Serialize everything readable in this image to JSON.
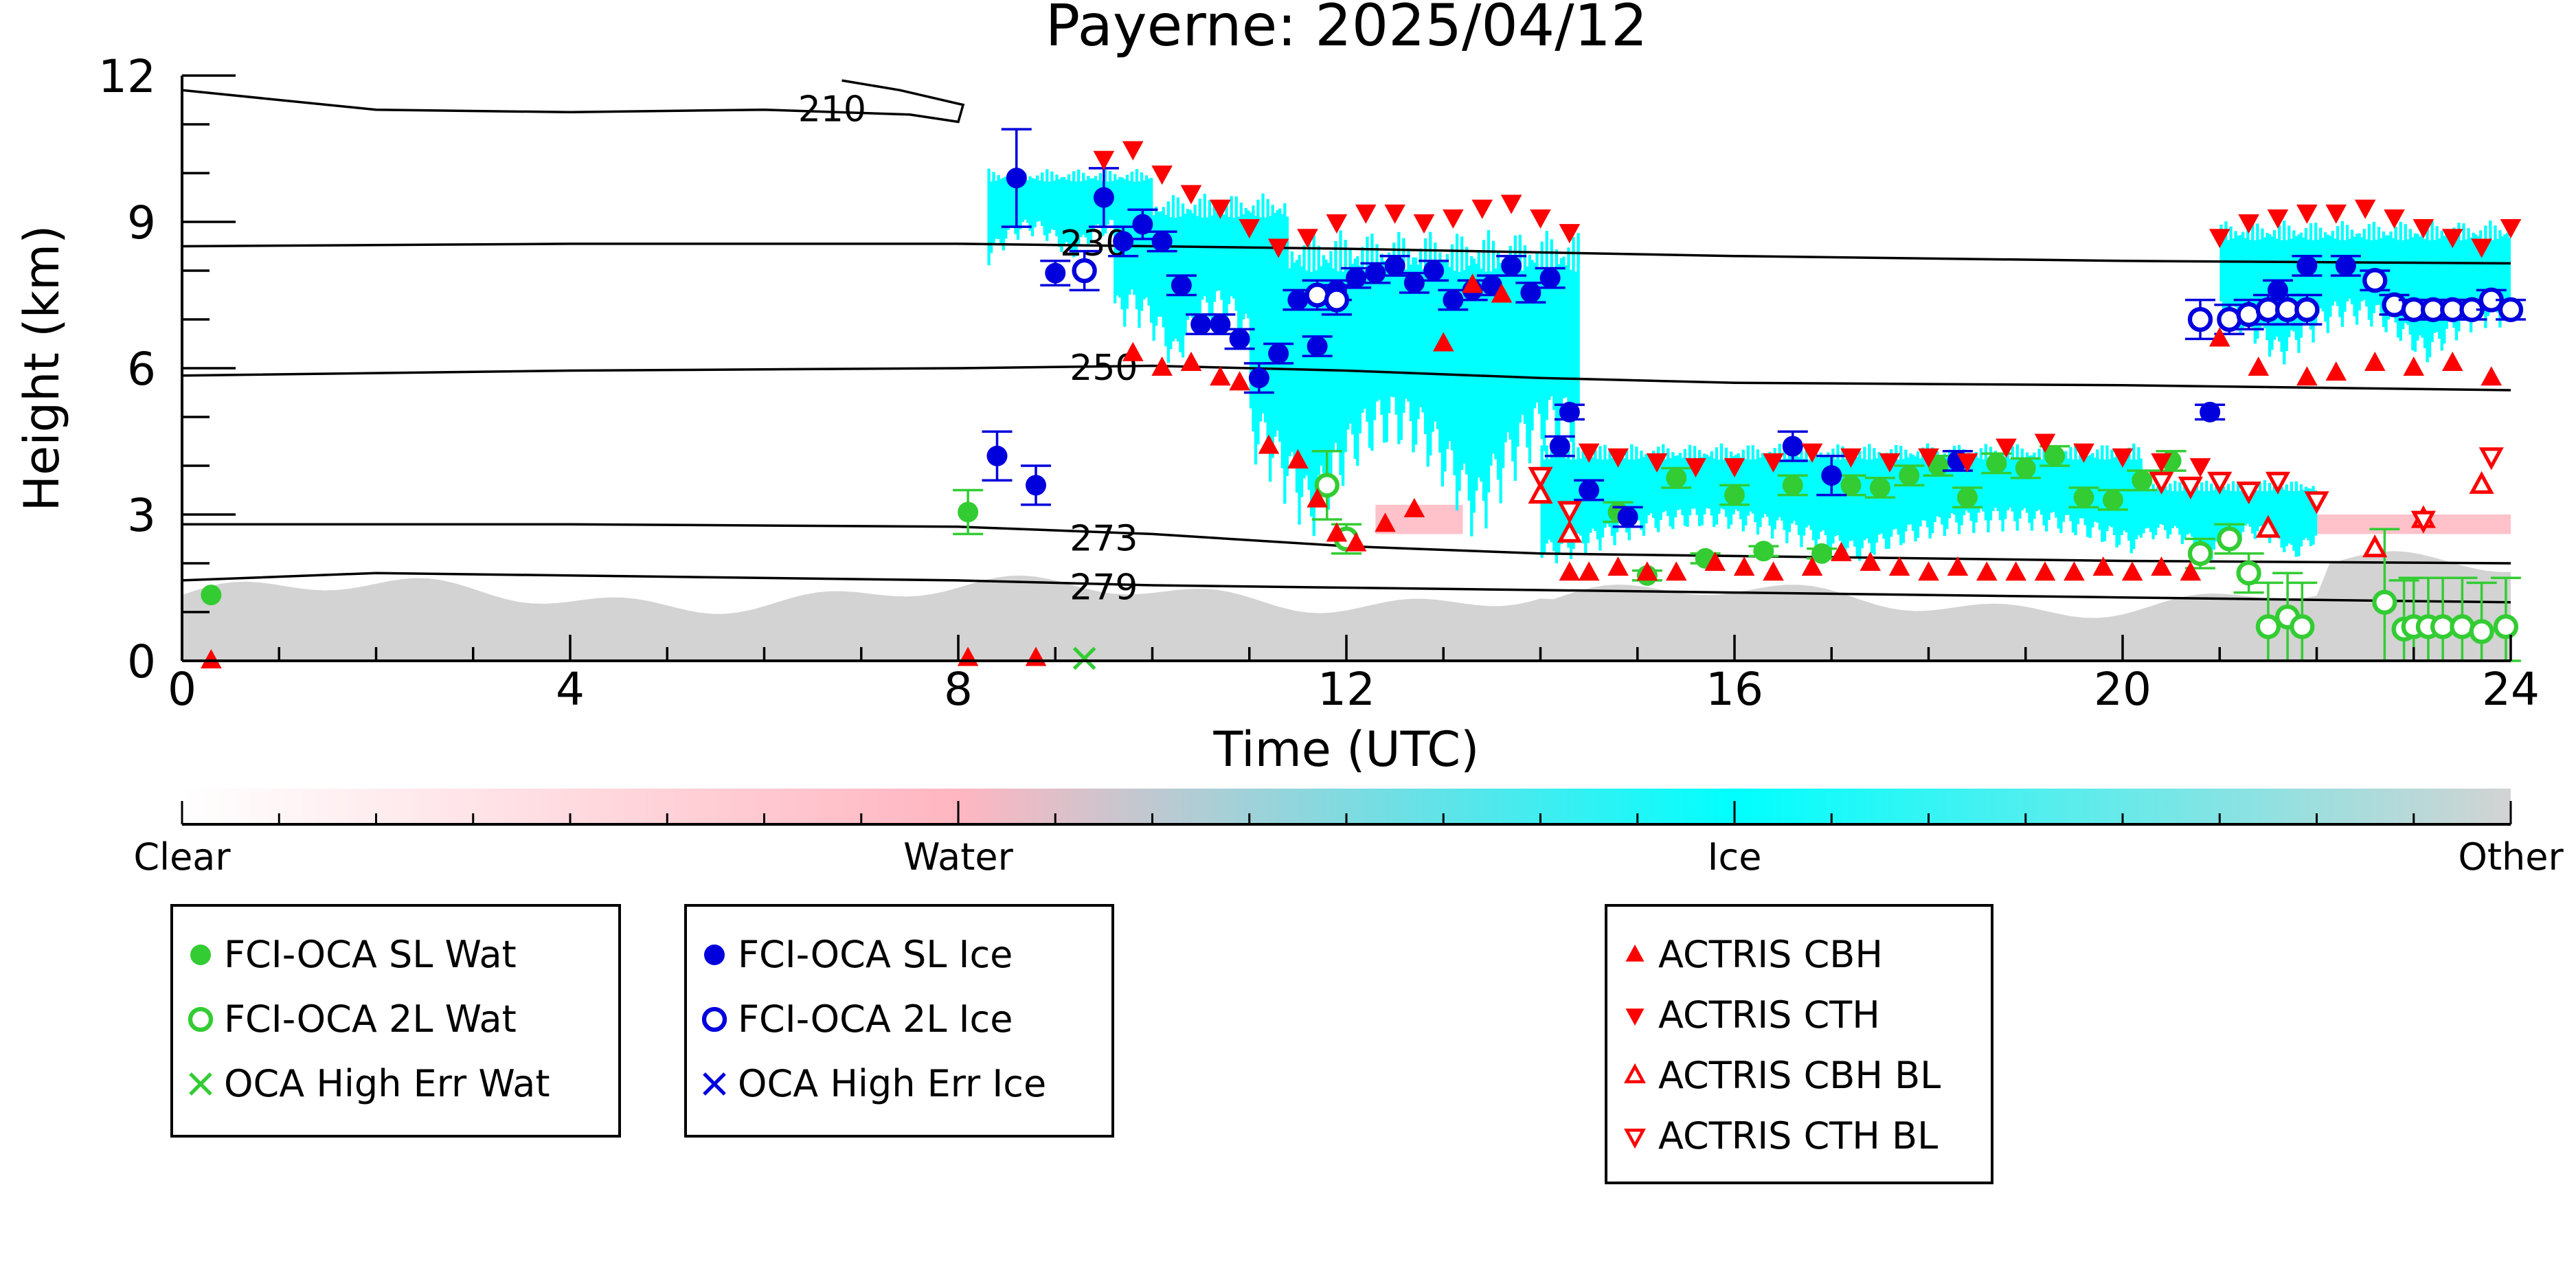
{
  "chart_data": {
    "type": "scatter",
    "title": "Payerne: 2025/04/12",
    "xlabel": "Time (UTC)",
    "ylabel": "Height (km)",
    "xlim": [
      0,
      24
    ],
    "ylim": [
      0,
      12
    ],
    "xticks": [
      "0",
      "4",
      "8",
      "12",
      "16",
      "20",
      "24"
    ],
    "yticks": [
      "0",
      "3",
      "6",
      "9",
      "12"
    ],
    "background": {
      "description": "ground-based cloud classification image",
      "classes": [
        "Clear",
        "Water",
        "Ice",
        "Other"
      ],
      "class_colors": {
        "Clear": "#ffffff",
        "Water": "#ffb6c1",
        "Ice": "#00ffff",
        "Other": "#d3d3d3"
      },
      "ice_regions": [
        {
          "x0": 8.3,
          "x1": 10.0,
          "y0": 8.0,
          "y1": 10.2
        },
        {
          "x0": 9.6,
          "x1": 11.4,
          "y0": 5.6,
          "y1": 9.8
        },
        {
          "x0": 11.0,
          "x1": 14.4,
          "y0": 2.0,
          "y1": 9.2
        },
        {
          "x0": 14.0,
          "x1": 20.2,
          "y0": 1.8,
          "y1": 4.6
        },
        {
          "x0": 20.2,
          "x1": 22.0,
          "y0": 1.9,
          "y1": 3.8
        },
        {
          "x0": 21.0,
          "x1": 24.0,
          "y0": 5.8,
          "y1": 9.2
        }
      ],
      "water_regions": [
        {
          "x0": 12.3,
          "x1": 13.2,
          "y0": 2.6,
          "y1": 3.2
        },
        {
          "x0": 22.0,
          "x1": 24.0,
          "y0": 2.6,
          "y1": 3.0
        }
      ]
    },
    "colorbar": {
      "labels": [
        "Clear",
        "Water",
        "Ice",
        "Other"
      ],
      "stops": [
        {
          "pos": 0.0,
          "color": "#ffffff"
        },
        {
          "pos": 0.333,
          "color": "#ffb6c1"
        },
        {
          "pos": 0.667,
          "color": "#00ffff"
        },
        {
          "pos": 1.0,
          "color": "#d3d3d3"
        }
      ]
    },
    "contours": [
      {
        "label": "210",
        "x": [
          0,
          2,
          4,
          6,
          7.5,
          8.0,
          8.05,
          7.4,
          6.8
        ],
        "y": [
          11.7,
          11.3,
          11.25,
          11.3,
          11.2,
          11.05,
          11.4,
          11.7,
          11.9
        ]
      },
      {
        "label": "230",
        "x": [
          0,
          4,
          8,
          12,
          16,
          20,
          24
        ],
        "y": [
          8.5,
          8.55,
          8.55,
          8.45,
          8.3,
          8.2,
          8.15
        ]
      },
      {
        "label": "250",
        "x": [
          0,
          4,
          8,
          10,
          12,
          14,
          16,
          20,
          24
        ],
        "y": [
          5.85,
          5.95,
          6.0,
          6.05,
          5.95,
          5.8,
          5.7,
          5.65,
          5.55
        ]
      },
      {
        "label": "273",
        "x": [
          0,
          4,
          8,
          10,
          12,
          14,
          16,
          20,
          24
        ],
        "y": [
          2.8,
          2.8,
          2.75,
          2.6,
          2.35,
          2.2,
          2.15,
          2.05,
          2.0
        ]
      },
      {
        "label": "279",
        "x": [
          0,
          2,
          4,
          8,
          10,
          12,
          14,
          16,
          20,
          24
        ],
        "y": [
          1.65,
          1.8,
          1.75,
          1.65,
          1.55,
          1.5,
          1.45,
          1.4,
          1.3,
          1.2
        ]
      }
    ],
    "contour_labels": [
      {
        "text": "210",
        "x": 6.7,
        "y": 11.3
      },
      {
        "text": "230",
        "x": 9.4,
        "y": 8.55
      },
      {
        "text": "250",
        "x": 9.5,
        "y": 6.0
      },
      {
        "text": "273",
        "x": 9.5,
        "y": 2.5
      },
      {
        "text": "279",
        "x": 9.5,
        "y": 1.5
      }
    ],
    "series": [
      {
        "name": "FCI-OCA SL Wat",
        "marker": "filled-circle",
        "color": "#33cc33",
        "x": [
          0.3,
          8.1,
          14.8,
          15.1,
          15.4,
          15.7,
          16.0,
          16.3,
          16.6,
          16.9,
          17.2,
          17.5,
          17.8,
          18.1,
          18.4,
          18.7,
          19.0,
          19.3,
          19.6,
          19.9,
          20.2,
          20.5
        ],
        "y": [
          1.35,
          3.05,
          3.05,
          1.75,
          3.75,
          2.1,
          3.4,
          2.25,
          3.6,
          2.2,
          3.6,
          3.55,
          3.8,
          4.0,
          3.35,
          4.05,
          3.95,
          4.2,
          3.35,
          3.3,
          3.7,
          4.1
        ],
        "yerr": [
          0,
          0.45,
          0.2,
          0.1,
          0.2,
          0.1,
          0.2,
          0.1,
          0.2,
          0.1,
          0.2,
          0.2,
          0.2,
          0.2,
          0.2,
          0.2,
          0.2,
          0.2,
          0.2,
          0.2,
          0.2,
          0.2
        ]
      },
      {
        "name": "FCI-OCA 2L Wat",
        "marker": "open-circle",
        "color": "#33cc33",
        "x": [
          11.8,
          12.0,
          20.8,
          21.1,
          21.3,
          21.5,
          21.7,
          21.85,
          22.7,
          22.9,
          23.0,
          23.15,
          23.3,
          23.5,
          23.7,
          23.95
        ],
        "y": [
          3.6,
          2.5,
          2.2,
          2.5,
          1.8,
          0.7,
          0.9,
          0.7,
          1.2,
          0.65,
          0.7,
          0.7,
          0.7,
          0.7,
          0.6,
          0.7
        ],
        "yerr": [
          0.7,
          0.3,
          0.3,
          0.3,
          0.4,
          0.9,
          0.9,
          0.9,
          1.5,
          1.0,
          1.0,
          1.0,
          1.0,
          1.0,
          1.0,
          1.0
        ]
      },
      {
        "name": "OCA High Err Wat",
        "marker": "cross",
        "color": "#33cc33",
        "x": [
          9.3
        ],
        "y": [
          0.05
        ],
        "yerr": [
          0
        ]
      },
      {
        "name": "FCI-OCA SL Ice",
        "marker": "filled-circle",
        "color": "#0000dd",
        "x": [
          8.6,
          9.0,
          9.5,
          9.7,
          9.9,
          10.1,
          10.3,
          10.5,
          10.7,
          10.9,
          11.1,
          11.3,
          11.5,
          11.7,
          11.9,
          12.1,
          12.3,
          12.5,
          12.7,
          12.9,
          13.1,
          13.3,
          13.5,
          13.7,
          13.9,
          14.1,
          14.3,
          8.4,
          8.8,
          14.2,
          14.5,
          14.9,
          16.6,
          17.0,
          18.3,
          20.9,
          21.6,
          21.9,
          22.3
        ],
        "y": [
          9.9,
          7.95,
          9.5,
          8.6,
          8.95,
          8.6,
          7.7,
          6.9,
          6.9,
          6.6,
          5.8,
          6.3,
          7.4,
          6.45,
          7.6,
          7.85,
          7.95,
          8.1,
          7.75,
          8.0,
          7.4,
          7.6,
          7.7,
          8.1,
          7.55,
          7.85,
          5.1,
          4.2,
          3.6,
          4.4,
          3.5,
          2.95,
          4.4,
          3.8,
          4.1,
          5.1,
          7.6,
          8.1,
          8.1
        ],
        "yerr": [
          1.0,
          0.25,
          0.6,
          0.3,
          0.3,
          0.2,
          0.2,
          0.2,
          0.2,
          0.2,
          0.3,
          0.2,
          0.2,
          0.2,
          0.2,
          0.2,
          0.2,
          0.2,
          0.2,
          0.2,
          0.2,
          0.2,
          0.2,
          0.2,
          0.2,
          0.2,
          0.15,
          0.5,
          0.4,
          0.2,
          0.2,
          0.2,
          0.3,
          0.4,
          0.2,
          0.15,
          0.2,
          0.2,
          0.2
        ]
      },
      {
        "name": "FCI-OCA 2L Ice",
        "marker": "open-circle",
        "color": "#0000dd",
        "x": [
          9.3,
          11.7,
          11.9,
          20.8,
          21.1,
          21.3,
          21.5,
          21.7,
          21.9,
          22.6,
          22.8,
          23.0,
          23.2,
          23.4,
          23.6,
          23.8,
          24.0
        ],
        "y": [
          8.0,
          7.5,
          7.4,
          7.0,
          7.0,
          7.1,
          7.2,
          7.2,
          7.2,
          7.8,
          7.3,
          7.2,
          7.2,
          7.2,
          7.2,
          7.4,
          7.2
        ],
        "yerr": [
          0.4,
          0.3,
          0.3,
          0.4,
          0.3,
          0.3,
          0.3,
          0.3,
          0.3,
          0.2,
          0.2,
          0.2,
          0.2,
          0.2,
          0.2,
          0.2,
          0.2
        ]
      },
      {
        "name": "OCA High Err Ice",
        "marker": "cross",
        "color": "#0000dd",
        "x": [],
        "y": [],
        "yerr": []
      },
      {
        "name": "ACTRIS CBH",
        "marker": "filled-triangle-up",
        "color": "#ff0000",
        "x": [
          0.3,
          8.1,
          8.8,
          9.8,
          10.1,
          10.4,
          10.7,
          10.9,
          11.2,
          11.5,
          11.7,
          11.9,
          12.1,
          12.4,
          12.7,
          13.0,
          13.3,
          13.6,
          14.3,
          14.5,
          14.8,
          15.1,
          15.4,
          15.8,
          16.1,
          16.4,
          16.8,
          17.1,
          17.4,
          17.7,
          18.0,
          18.3,
          18.6,
          18.9,
          19.2,
          19.5,
          19.8,
          20.1,
          20.4,
          20.7,
          21.0,
          21.4,
          21.9,
          22.2,
          22.6,
          23.0,
          23.4,
          23.8
        ],
        "y": [
          0.0,
          0.05,
          0.05,
          6.3,
          6.0,
          6.1,
          5.8,
          5.7,
          4.4,
          4.1,
          3.3,
          2.6,
          2.4,
          2.8,
          3.1,
          6.5,
          7.7,
          7.5,
          1.8,
          1.8,
          1.9,
          1.8,
          1.8,
          2.0,
          1.9,
          1.8,
          1.9,
          2.2,
          2.0,
          1.9,
          1.8,
          1.9,
          1.8,
          1.8,
          1.8,
          1.8,
          1.9,
          1.8,
          1.9,
          1.8,
          6.6,
          6.0,
          5.8,
          5.9,
          6.1,
          6.0,
          6.1,
          5.8
        ]
      },
      {
        "name": "ACTRIS CTH",
        "marker": "filled-triangle-down",
        "color": "#ff0000",
        "x": [
          9.5,
          9.8,
          10.1,
          10.4,
          10.7,
          11.0,
          11.3,
          11.6,
          11.9,
          12.2,
          12.5,
          12.8,
          13.1,
          13.4,
          13.7,
          14.0,
          14.3,
          14.5,
          14.8,
          15.2,
          15.6,
          16.0,
          16.4,
          16.8,
          17.2,
          17.6,
          18.0,
          18.4,
          18.8,
          19.2,
          19.6,
          20.0,
          20.4,
          20.8,
          21.0,
          21.3,
          21.6,
          21.9,
          22.2,
          22.5,
          22.8,
          23.1,
          23.4,
          23.7,
          24.0
        ],
        "y": [
          10.3,
          10.5,
          10.0,
          9.6,
          9.3,
          8.9,
          8.5,
          8.7,
          9.0,
          9.2,
          9.2,
          9.0,
          9.1,
          9.3,
          9.4,
          9.1,
          8.8,
          4.3,
          4.2,
          4.1,
          4.0,
          4.0,
          4.1,
          4.3,
          4.2,
          4.1,
          4.2,
          4.1,
          4.4,
          4.5,
          4.3,
          4.2,
          4.1,
          4.0,
          8.7,
          9.0,
          9.1,
          9.2,
          9.2,
          9.3,
          9.1,
          8.9,
          8.7,
          8.5,
          8.9
        ]
      },
      {
        "name": "ACTRIS CBH BL",
        "marker": "open-triangle-up",
        "color": "#ff0000",
        "x": [
          14.0,
          14.3,
          21.5,
          22.6,
          23.1,
          23.7
        ],
        "y": [
          3.4,
          2.6,
          2.7,
          2.3,
          2.9,
          3.6
        ]
      },
      {
        "name": "ACTRIS CTH BL",
        "marker": "open-triangle-down",
        "color": "#ff0000",
        "x": [
          14.0,
          14.3,
          20.4,
          20.7,
          21.0,
          21.3,
          21.6,
          22.0,
          23.1,
          23.8
        ],
        "y": [
          3.8,
          3.1,
          3.7,
          3.6,
          3.7,
          3.5,
          3.7,
          3.3,
          2.9,
          4.2
        ]
      }
    ],
    "legends": [
      [
        "FCI-OCA SL Wat",
        "FCI-OCA 2L Wat",
        "OCA High Err Wat"
      ],
      [
        "FCI-OCA SL Ice",
        "FCI-OCA 2L Ice",
        "OCA High Err Ice"
      ],
      [
        "ACTRIS CBH",
        "ACTRIS CTH",
        "ACTRIS CBH BL",
        "ACTRIS CTH BL"
      ]
    ]
  }
}
